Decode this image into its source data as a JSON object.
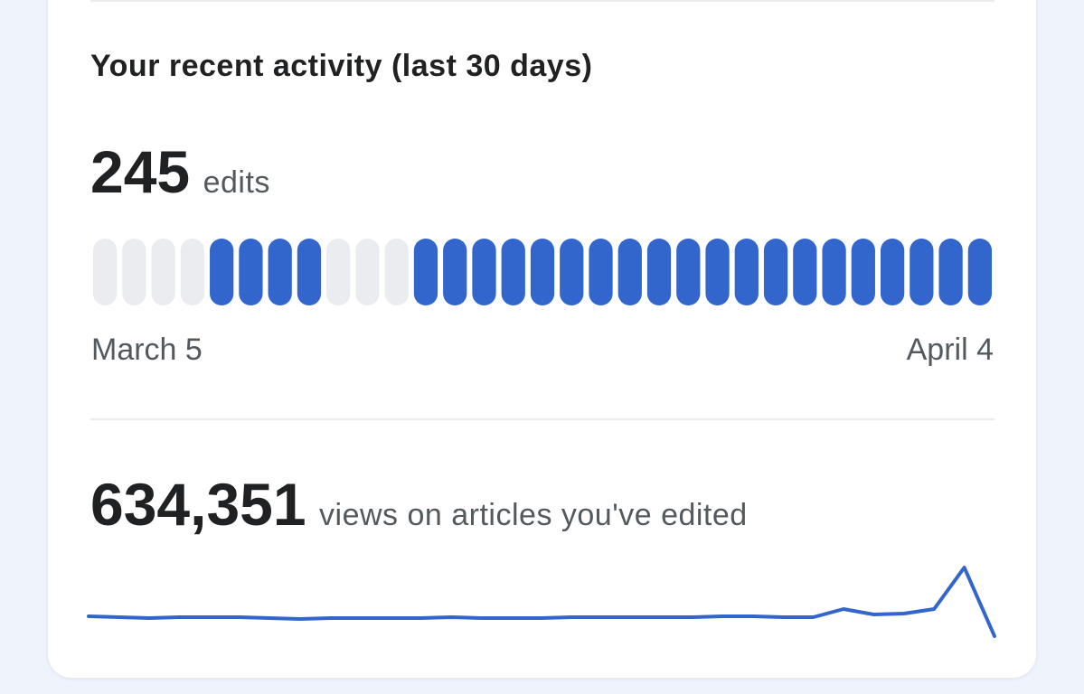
{
  "title": "Your recent activity (last 30 days)",
  "edits": {
    "count": "245",
    "label": "edits",
    "start_label": "March 5",
    "end_label": "April 4",
    "active_days": [
      0,
      0,
      0,
      0,
      1,
      1,
      1,
      1,
      0,
      0,
      0,
      1,
      1,
      1,
      1,
      1,
      1,
      1,
      1,
      1,
      1,
      1,
      1,
      1,
      1,
      1,
      1,
      1,
      1,
      1,
      1
    ],
    "active_color": "#3366cc",
    "inactive_color": "#eaecf0"
  },
  "views": {
    "count": "634,351",
    "label": "views on articles you've edited",
    "trend": [
      22,
      21,
      20,
      21,
      21,
      21,
      20,
      19,
      20,
      20,
      20,
      20,
      21,
      20,
      20,
      20,
      21,
      21,
      21,
      21,
      21,
      22,
      22,
      21,
      21,
      30,
      24,
      25,
      30,
      76,
      0
    ],
    "color": "#3366cc"
  }
}
